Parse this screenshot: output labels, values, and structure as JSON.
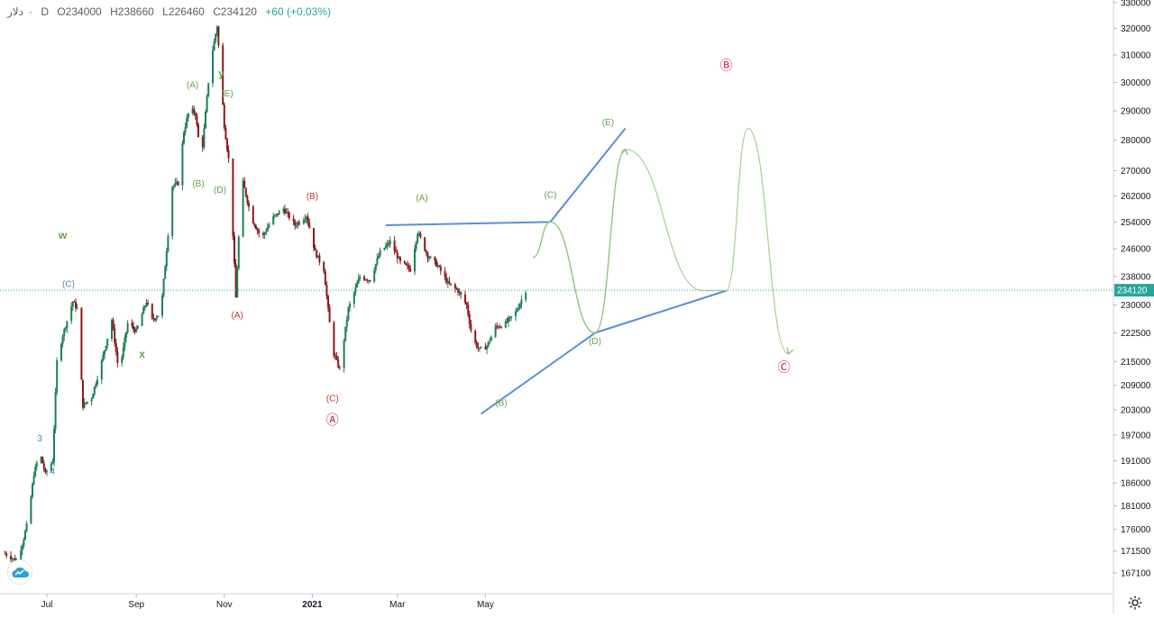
{
  "header": {
    "symbol_name": "دلار",
    "interval": "D",
    "open": "O234000",
    "high": "H238660",
    "low": "L226460",
    "close": "C234120",
    "change": "+60 (+0.03%)"
  },
  "colors": {
    "wave_green": "#6a9f4a",
    "wave_red": "#c0392b",
    "wave_blue": "#4a8ac0",
    "wave_pink": "#c2185b",
    "trendline": "#5a8fd8",
    "projection": "#8fc67a",
    "price_tag": "#26a69a",
    "candle_up": "#1e7f55",
    "candle_down": "#8b1a1a"
  },
  "chart_data": {
    "type": "candlestick",
    "title": "دلار · D",
    "current_price": 234120,
    "y_scale": "log",
    "ylim": [
      163000,
      331000
    ],
    "y_ticks": [
      330000,
      320000,
      310000,
      300000,
      290000,
      280000,
      270000,
      262000,
      254000,
      246000,
      238000,
      230000,
      222500,
      215000,
      209000,
      203000,
      197000,
      191000,
      186000,
      181000,
      176000,
      171500,
      167100
    ],
    "y_tick_labels": [
      "330000",
      "320000",
      "310000",
      "300000",
      "290000",
      "280000",
      "270000",
      "262000",
      "254000",
      "246000",
      "238000",
      "230000",
      "222500",
      "215000",
      "209000",
      "203000",
      "197000",
      "191000",
      "186000",
      "181000",
      "176000",
      "171500",
      "167100"
    ],
    "x_ticks": [
      "Jul",
      "Sep",
      "Nov",
      "2021",
      "Mar",
      "May"
    ],
    "x_tick_dates": [
      "2020-07-01",
      "2020-09-01",
      "2020-11-01",
      "2021-01-01",
      "2021-03-01",
      "2021-05-01"
    ],
    "date_range": [
      "2020-06-02",
      "2021-05-29"
    ],
    "price_path": [
      [
        "2020-06-02",
        171000
      ],
      [
        "2020-06-10",
        169500
      ],
      [
        "2020-06-14",
        173000
      ],
      [
        "2020-06-18",
        178000
      ],
      [
        "2020-06-22",
        188000
      ],
      [
        "2020-06-26",
        193000
      ],
      [
        "2020-06-30",
        188000
      ],
      [
        "2020-07-05",
        191000
      ],
      [
        "2020-07-08",
        215000
      ],
      [
        "2020-07-12",
        222000
      ],
      [
        "2020-07-16",
        227000
      ],
      [
        "2020-07-19",
        231000
      ],
      [
        "2020-07-22",
        229000
      ],
      [
        "2020-07-26",
        204000
      ],
      [
        "2020-08-01",
        206000
      ],
      [
        "2020-08-08",
        215000
      ],
      [
        "2020-08-15",
        226000
      ],
      [
        "2020-08-20",
        212000
      ],
      [
        "2020-08-26",
        225000
      ],
      [
        "2020-09-01",
        223000
      ],
      [
        "2020-09-08",
        231000
      ],
      [
        "2020-09-12",
        226000
      ],
      [
        "2020-09-18",
        228000
      ],
      [
        "2020-09-26",
        265000
      ],
      [
        "2020-09-30",
        266000
      ],
      [
        "2020-10-04",
        283000
      ],
      [
        "2020-10-08",
        291000
      ],
      [
        "2020-10-12",
        289000
      ],
      [
        "2020-10-16",
        273000
      ],
      [
        "2020-10-22",
        306000
      ],
      [
        "2020-10-27",
        321000
      ],
      [
        "2020-11-01",
        285000
      ],
      [
        "2020-11-05",
        270000
      ],
      [
        "2020-11-09",
        232000
      ],
      [
        "2020-11-13",
        268000
      ],
      [
        "2020-11-20",
        255000
      ],
      [
        "2020-11-27",
        249000
      ],
      [
        "2020-12-04",
        255000
      ],
      [
        "2020-12-12",
        258000
      ],
      [
        "2020-12-20",
        253000
      ],
      [
        "2020-12-28",
        256000
      ],
      [
        "2021-01-03",
        245000
      ],
      [
        "2021-01-09",
        240000
      ],
      [
        "2021-01-15",
        218000
      ],
      [
        "2021-01-20",
        213000
      ],
      [
        "2021-01-26",
        229000
      ],
      [
        "2021-02-03",
        238000
      ],
      [
        "2021-02-10",
        237000
      ],
      [
        "2021-02-17",
        245000
      ],
      [
        "2021-02-24",
        248000
      ],
      [
        "2021-03-03",
        242000
      ],
      [
        "2021-03-10",
        240000
      ],
      [
        "2021-03-15",
        251000
      ],
      [
        "2021-03-22",
        244000
      ],
      [
        "2021-03-29",
        241000
      ],
      [
        "2021-04-05",
        236000
      ],
      [
        "2021-04-12",
        234000
      ],
      [
        "2021-04-18",
        230000
      ],
      [
        "2021-04-22",
        221000
      ],
      [
        "2021-04-27",
        218000
      ],
      [
        "2021-05-02",
        219000
      ],
      [
        "2021-05-08",
        224000
      ],
      [
        "2021-05-15",
        225000
      ],
      [
        "2021-05-22",
        228000
      ],
      [
        "2021-05-29",
        234120
      ]
    ],
    "annotations": [
      {
        "label": "w",
        "color_key": "wave_green",
        "date": "2020-07-12",
        "price": 249000
      },
      {
        "label": "x",
        "color_key": "wave_green",
        "date": "2020-09-05",
        "price": 216000
      },
      {
        "label": "y",
        "color_key": "wave_green",
        "date": "2020-10-30",
        "price": 302000
      },
      {
        "label": "(A)",
        "color_key": "wave_green",
        "date": "2020-10-10",
        "price": 298000
      },
      {
        "label": "(B)",
        "color_key": "wave_green",
        "date": "2020-10-14",
        "price": 265000
      },
      {
        "label": "(D)",
        "color_key": "wave_green",
        "date": "2020-10-29",
        "price": 263000
      },
      {
        "label": "(E)",
        "color_key": "wave_green",
        "date": "2020-11-03",
        "price": 295000
      },
      {
        "label": "(C)",
        "color_key": "wave_blue",
        "date": "2020-07-16",
        "price": 235000
      },
      {
        "label": "3",
        "color_key": "wave_blue",
        "date": "2020-06-26",
        "price": 195500
      },
      {
        "label": "4",
        "color_key": "wave_blue",
        "date": "2020-07-05",
        "price": 188000
      },
      {
        "label": "(A)",
        "color_key": "wave_red",
        "date": "2020-11-10",
        "price": 226500
      },
      {
        "label": "(B)",
        "color_key": "wave_red",
        "date": "2021-01-01",
        "price": 261000
      },
      {
        "label": "(C)",
        "color_key": "wave_red",
        "date": "2021-01-15",
        "price": 205000
      },
      {
        "label": "(A)",
        "color_key": "wave_green",
        "date": "2021-03-18",
        "price": 260500
      },
      {
        "label": "(B)",
        "color_key": "wave_green",
        "date": "2021-05-12",
        "price": 204000
      },
      {
        "label": "(C)",
        "color_key": "wave_green",
        "date": "2021-06-15",
        "price": 261500
      },
      {
        "label": "(D)",
        "color_key": "wave_green",
        "date": "2021-07-16",
        "price": 219500
      },
      {
        "label": "(E)",
        "color_key": "wave_green",
        "date": "2021-07-25",
        "price": 285000
      },
      {
        "label": "Ⓐ",
        "color_key": "wave_pink",
        "date": "2021-01-15",
        "price": 199500
      },
      {
        "label": "Ⓑ",
        "color_key": "wave_pink",
        "date": "2021-10-15",
        "price": 304500
      },
      {
        "label": "Ⓒ",
        "color_key": "wave_pink",
        "date": "2021-11-24",
        "price": 212500
      }
    ],
    "trendlines": [
      {
        "from": [
          "2021-02-21",
          253000
        ],
        "to": [
          "2021-06-15",
          254000
        ]
      },
      {
        "from": [
          "2021-06-15",
          254000
        ],
        "to": [
          "2021-08-06",
          284000
        ]
      },
      {
        "from": [
          "2021-04-28",
          202000
        ],
        "to": [
          "2021-07-16",
          222500
        ]
      },
      {
        "from": [
          "2021-07-16",
          222500
        ],
        "to": [
          "2021-10-15",
          234000
        ]
      }
    ]
  }
}
